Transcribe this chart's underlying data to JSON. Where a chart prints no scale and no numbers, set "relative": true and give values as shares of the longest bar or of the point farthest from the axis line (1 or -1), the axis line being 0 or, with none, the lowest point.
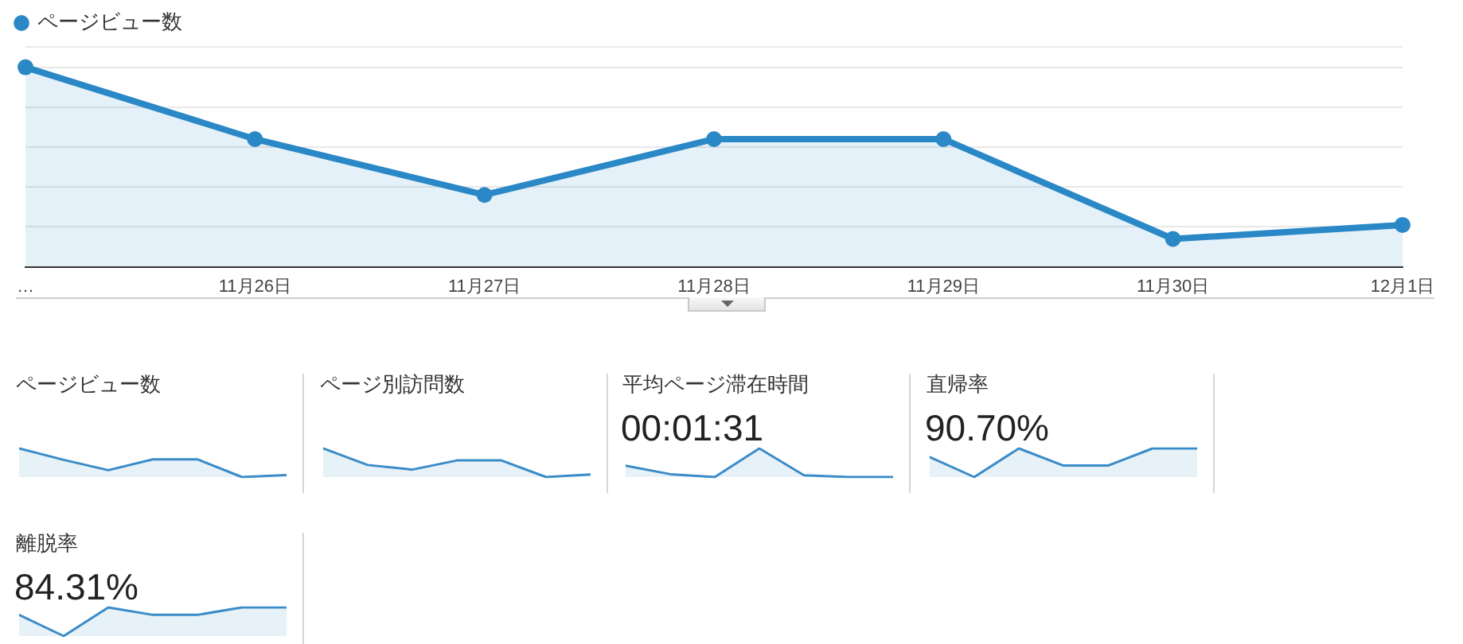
{
  "chart_data": [
    {
      "type": "area",
      "categories": [
        "…",
        "11月26日",
        "11月27日",
        "11月28日",
        "11月29日",
        "11月30日",
        "12月1日"
      ],
      "series": [
        {
          "name": "ページビュー数",
          "color": "#2a88c6",
          "values": [
            1,
            0.64,
            0.36,
            0.64,
            0.64,
            0.14,
            0.21
          ]
        }
      ],
      "relative": true,
      "grid": "y",
      "legend": "top left",
      "marker": "circle"
    },
    {
      "type": "area",
      "title": "ページビュー数",
      "categories": [
        null,
        null,
        null,
        null,
        null,
        null,
        null
      ],
      "values": [
        1,
        0.6,
        0.24,
        0.62,
        0.62,
        0,
        0.07
      ],
      "color": "#3a8cc8",
      "relative": true,
      "marker": "none"
    },
    {
      "type": "area",
      "title": "ページ別訪問数",
      "categories": [
        null,
        null,
        null,
        null,
        null,
        null,
        null
      ],
      "values": [
        1,
        0.42,
        0.26,
        0.58,
        0.58,
        0,
        0.09
      ],
      "color": "#3a8cc8",
      "relative": true,
      "marker": "none"
    },
    {
      "type": "area",
      "title": "平均ページ滞在時間",
      "subtitle": "00:01:31",
      "categories": [
        null,
        null,
        null,
        null,
        null,
        null,
        null
      ],
      "values": [
        0.4,
        0.1,
        0,
        1,
        0.06,
        0,
        0
      ],
      "color": "#3a8cc8",
      "relative": true,
      "marker": "none"
    },
    {
      "type": "area",
      "title": "直帰率",
      "subtitle": "90.70%",
      "categories": [
        null,
        null,
        null,
        null,
        null,
        null,
        null
      ],
      "values": [
        0.7,
        0,
        1,
        0.4,
        0.4,
        1,
        1
      ],
      "color": "#3a8cc8",
      "relative": true,
      "marker": "none"
    },
    {
      "type": "area",
      "title": "離脱率",
      "subtitle": "84.31%",
      "categories": [
        null,
        null,
        null,
        null,
        null,
        null,
        null
      ],
      "values": [
        0.74,
        0,
        1,
        0.74,
        0.74,
        1,
        1
      ],
      "color": "#3a8cc8",
      "relative": true,
      "marker": "none"
    }
  ]
}
